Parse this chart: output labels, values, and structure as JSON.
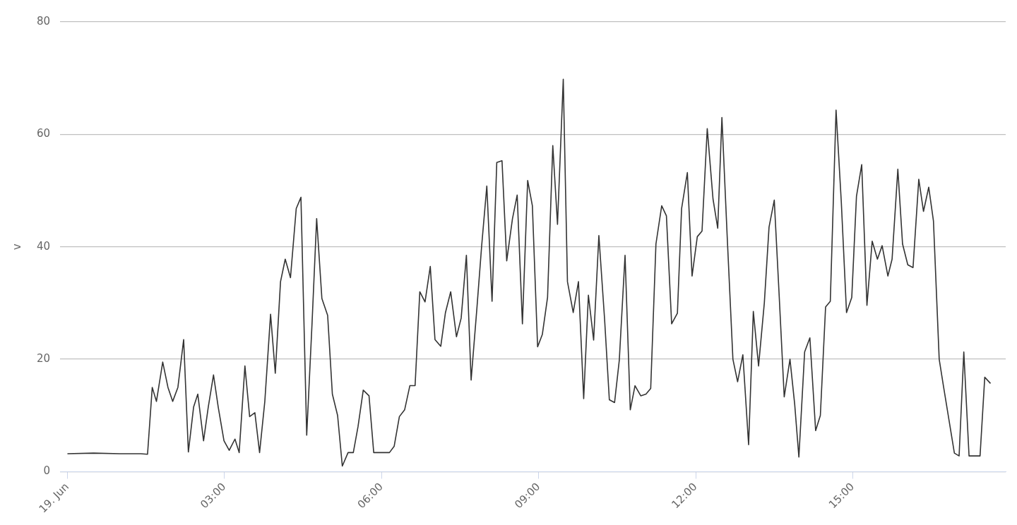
{
  "chart_data": {
    "type": "line",
    "ylabel": "v",
    "xlim": [
      -0.14,
      17.92
    ],
    "ylim": [
      0,
      80
    ],
    "yticks": [
      0,
      20,
      40,
      60,
      80
    ],
    "xticks": [
      {
        "value": 0,
        "label": "19. Jun"
      },
      {
        "value": 3,
        "label": "03:00"
      },
      {
        "value": 6,
        "label": "06:00"
      },
      {
        "value": 9,
        "label": "09:00"
      },
      {
        "value": 12,
        "label": "12:00"
      },
      {
        "value": 15,
        "label": "15:00"
      }
    ],
    "grid": "y",
    "legend": false,
    "marker": "none",
    "line_style": "solid",
    "series": [
      {
        "color": "#333333",
        "x": [
          0,
          0.5,
          1.0,
          1.4,
          1.53,
          1.62,
          1.7,
          1.82,
          1.92,
          2.01,
          2.11,
          2.22,
          2.31,
          2.41,
          2.49,
          2.6,
          2.69,
          2.79,
          2.88,
          2.99,
          3.09,
          3.2,
          3.28,
          3.39,
          3.48,
          3.58,
          3.67,
          3.77,
          3.88,
          3.97,
          4.07,
          4.16,
          4.26,
          4.37,
          4.46,
          4.57,
          4.67,
          4.76,
          4.86,
          4.97,
          5.06,
          5.16,
          5.25,
          5.36,
          5.46,
          5.55,
          5.65,
          5.76,
          5.85,
          6.0,
          6.15,
          6.24,
          6.34,
          6.44,
          6.54,
          6.64,
          6.73,
          6.83,
          6.93,
          7.02,
          7.13,
          7.22,
          7.32,
          7.43,
          7.52,
          7.62,
          7.71,
          7.82,
          7.91,
          8.01,
          8.11,
          8.2,
          8.3,
          8.39,
          8.5,
          8.59,
          8.69,
          8.79,
          8.88,
          8.98,
          9.07,
          9.17,
          9.27,
          9.36,
          9.47,
          9.55,
          9.66,
          9.76,
          9.86,
          9.95,
          10.05,
          10.15,
          10.26,
          10.35,
          10.45,
          10.54,
          10.65,
          10.75,
          10.84,
          10.95,
          11.05,
          11.14,
          11.24,
          11.35,
          11.44,
          11.54,
          11.65,
          11.73,
          11.84,
          11.93,
          12.03,
          12.12,
          12.22,
          12.33,
          12.42,
          12.5,
          12.6,
          12.71,
          12.8,
          12.9,
          13.01,
          13.1,
          13.2,
          13.31,
          13.4,
          13.5,
          13.59,
          13.69,
          13.8,
          13.89,
          13.97,
          14.08,
          14.18,
          14.29,
          14.38,
          14.48,
          14.57,
          14.68,
          14.78,
          14.88,
          14.98,
          15.07,
          15.17,
          15.27,
          15.37,
          15.47,
          15.56,
          15.67,
          15.75,
          15.86,
          15.95,
          16.05,
          16.15,
          16.26,
          16.35,
          16.45,
          16.54,
          16.65,
          16.73,
          16.84,
          16.94,
          17.03,
          17.12,
          17.22,
          17.33,
          17.43,
          17.52,
          17.63
        ],
        "values": [
          3.2,
          3.3,
          3.2,
          3.2,
          3.1,
          15,
          12.5,
          19.5,
          15,
          12.5,
          15,
          23.5,
          3.5,
          11.5,
          13.8,
          5.5,
          11.5,
          17.2,
          11.5,
          5.5,
          3.8,
          5.8,
          3.4,
          18.8,
          9.8,
          10.5,
          3.4,
          12.5,
          28,
          17.5,
          33.8,
          37.8,
          34.5,
          46.8,
          48.8,
          6.5,
          26,
          45,
          30.8,
          27.8,
          13.8,
          10,
          1,
          3.4,
          3.4,
          8,
          14.5,
          13.5,
          3.4,
          3.4,
          3.4,
          4.5,
          9.8,
          11,
          15.3,
          15.3,
          32,
          30.2,
          36.5,
          23.5,
          22.3,
          28.3,
          32,
          24,
          27.3,
          38.5,
          16.3,
          29,
          40,
          50.8,
          30.3,
          55,
          55.3,
          37.5,
          45,
          49.2,
          26.3,
          51.8,
          47.3,
          22.2,
          24.4,
          31,
          58,
          44,
          69.8,
          33.8,
          28.3,
          33.8,
          13,
          31.4,
          23.4,
          42,
          27,
          12.8,
          12.3,
          19.8,
          38.5,
          11,
          15.3,
          13.5,
          13.8,
          14.8,
          40.5,
          47.3,
          45.5,
          26.3,
          28.2,
          46.8,
          53.2,
          34.8,
          41.8,
          42.8,
          61,
          48.5,
          43.3,
          63,
          42,
          20,
          16,
          20.8,
          4.8,
          28.5,
          18.8,
          30,
          43.5,
          48.3,
          32,
          13.3,
          20,
          12,
          2.6,
          21.3,
          23.8,
          7.3,
          10,
          29.3,
          30.3,
          64.3,
          48,
          28.3,
          31,
          49,
          54.6,
          29.6,
          41,
          37.8,
          40.2,
          34.8,
          37.8,
          53.8,
          40.5,
          36.8,
          36.3,
          52,
          46.3,
          50.6,
          44.6,
          20,
          15.3,
          9,
          3.3,
          2.8,
          21.3,
          2.8,
          2.8,
          2.8,
          16.8,
          15.7
        ]
      }
    ]
  }
}
